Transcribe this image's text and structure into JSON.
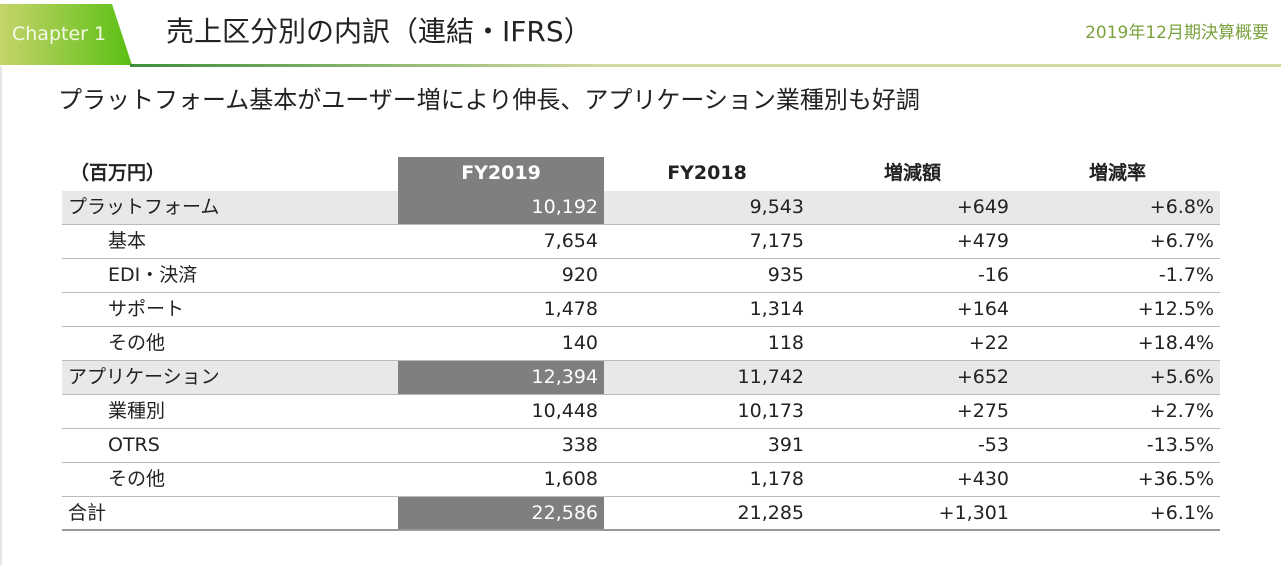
{
  "header": {
    "chapter": "Chapter 1",
    "title": "売上区分別の内訳（連結・IFRS）",
    "subtitle": "2019年12月期決算概要"
  },
  "lead": "プラットフォーム基本がユーザー増により伸長、アプリケーション業種別も好調",
  "table": {
    "headers": [
      "（百万円）",
      "FY2019",
      "FY2018",
      "増減額",
      "増減率"
    ],
    "rows": [
      {
        "label": "プラットフォーム",
        "type": "cat",
        "values": [
          "10,192",
          "9,543",
          "+649",
          "+6.8%"
        ]
      },
      {
        "label": "基本",
        "type": "sub",
        "values": [
          "7,654",
          "7,175",
          "+479",
          "+6.7%"
        ]
      },
      {
        "label": "EDI・決済",
        "type": "sub",
        "values": [
          "920",
          "935",
          "-16",
          "-1.7%"
        ]
      },
      {
        "label": "サポート",
        "type": "sub",
        "values": [
          "1,478",
          "1,314",
          "+164",
          "+12.5%"
        ]
      },
      {
        "label": "その他",
        "type": "sub",
        "values": [
          "140",
          "118",
          "+22",
          "+18.4%"
        ]
      },
      {
        "label": "アプリケーション",
        "type": "cat",
        "values": [
          "12,394",
          "11,742",
          "+652",
          "+5.6%"
        ]
      },
      {
        "label": "業種別",
        "type": "sub",
        "values": [
          "10,448",
          "10,173",
          "+275",
          "+2.7%"
        ]
      },
      {
        "label": "OTRS",
        "type": "sub",
        "values": [
          "338",
          "391",
          "-53",
          "-13.5%"
        ]
      },
      {
        "label": "その他",
        "type": "sub",
        "values": [
          "1,608",
          "1,178",
          "+430",
          "+36.5%"
        ]
      },
      {
        "label": "合計",
        "type": "tot",
        "values": [
          "22,586",
          "21,285",
          "+1,301",
          "+6.1%"
        ]
      }
    ]
  }
}
